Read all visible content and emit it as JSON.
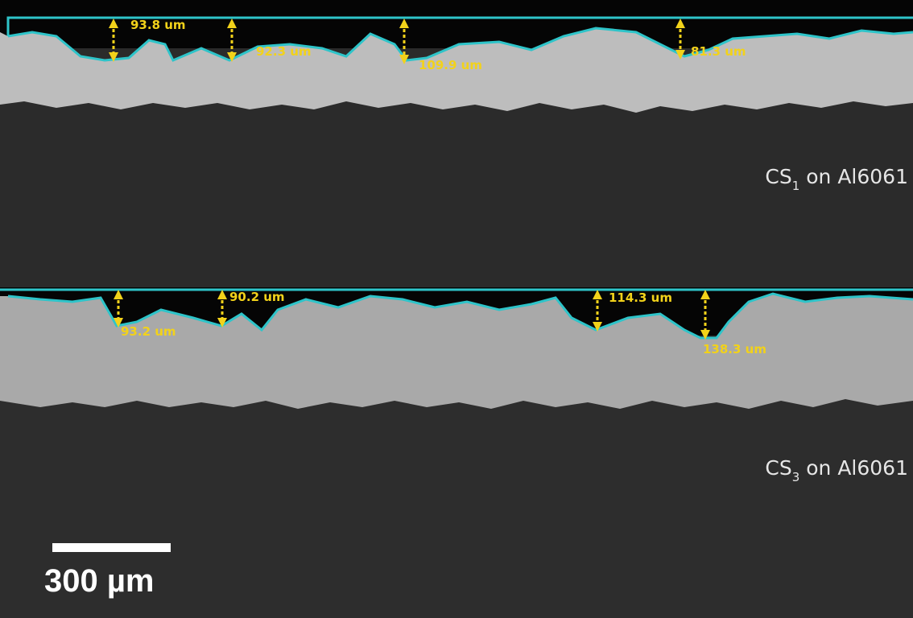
{
  "panels": [
    {
      "label": {
        "main": "CS",
        "sub": "1",
        "rest": "on Al6061"
      },
      "measurements": [
        "93.8 um",
        "92.3 um",
        "109.9 um",
        "81.3 um"
      ]
    },
    {
      "label": {
        "main": "CS",
        "sub": "3",
        "rest": "on Al6061"
      },
      "measurements": [
        "93.2 um",
        "90.2 um",
        "114.3 um",
        "138.3 um"
      ]
    }
  ],
  "scale_bar": {
    "label": "300 µm"
  }
}
